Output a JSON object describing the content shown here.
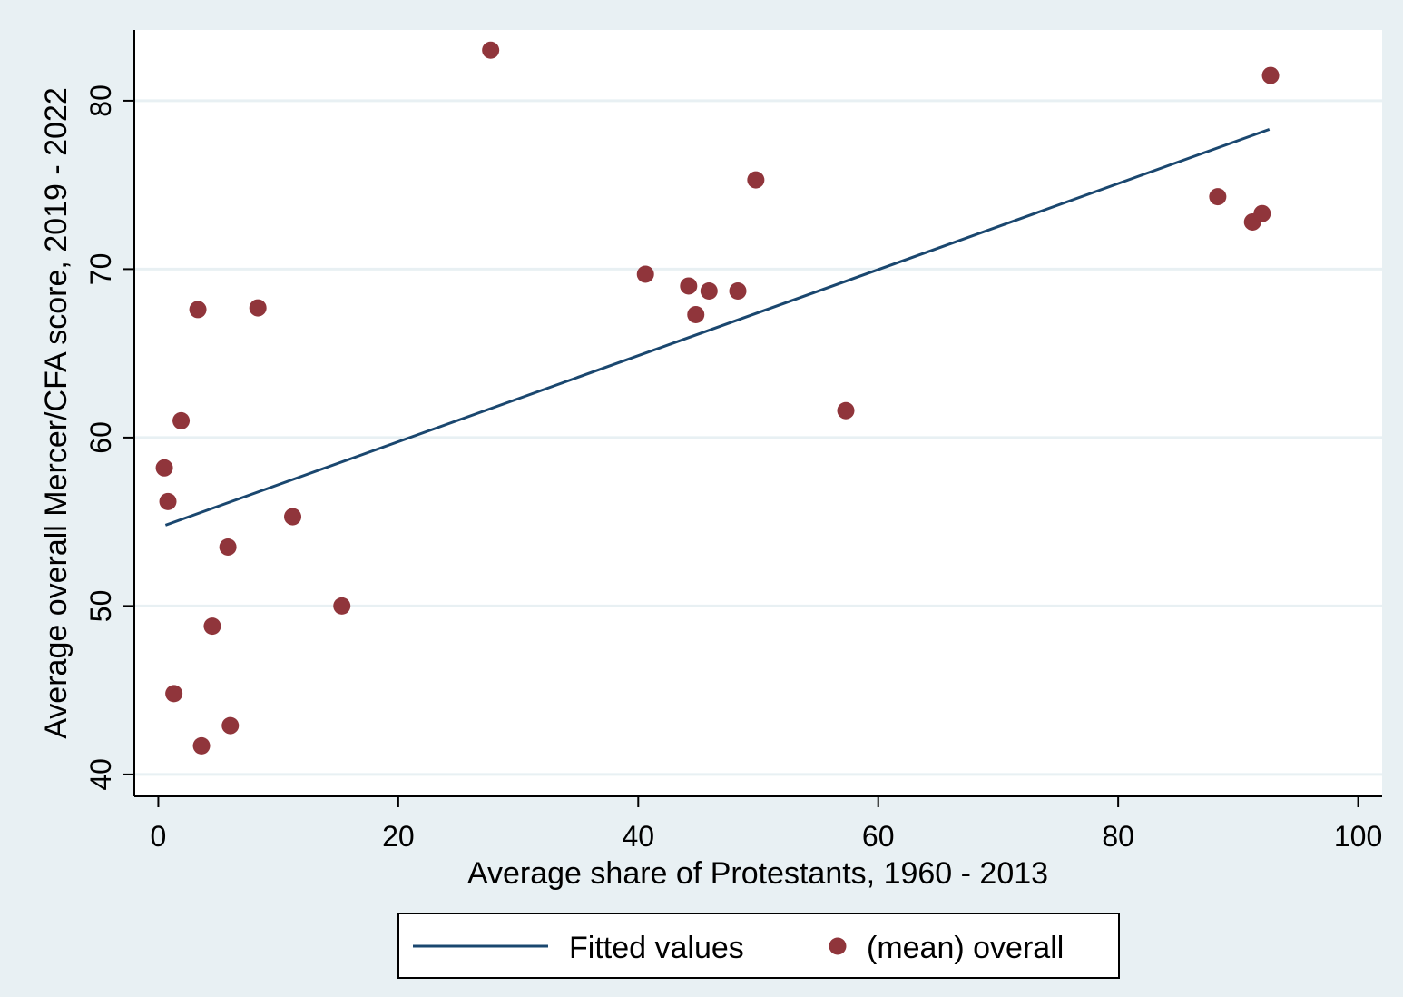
{
  "colors": {
    "background": "#e8f0f3",
    "plot_area": "#ffffff",
    "gridline": "#e8f0f3",
    "fit_line": "#1a476f",
    "points": "#90353b"
  },
  "chart_data": {
    "type": "scatter",
    "xlabel": "Average share of Protestants, 1960 - 2013",
    "ylabel": "Average overall Mercer/CFA score, 2019 - 2022",
    "xlim": [
      -2,
      102
    ],
    "ylim": [
      38.7,
      84.2
    ],
    "xticks": [
      0,
      20,
      40,
      60,
      80,
      100
    ],
    "yticks": [
      40,
      50,
      60,
      70,
      80
    ],
    "grid": true,
    "legend_position": "bottom",
    "legend": [
      {
        "label": "Fitted values",
        "kind": "line"
      },
      {
        "label": "(mean) overall",
        "kind": "marker"
      }
    ],
    "series": [
      {
        "name": "Fitted values",
        "type": "line",
        "points": [
          {
            "x": 0.6,
            "y": 54.8
          },
          {
            "x": 92.6,
            "y": 78.3
          }
        ]
      },
      {
        "name": "(mean) overall",
        "type": "scatter",
        "points": [
          {
            "x": 0.5,
            "y": 58.2
          },
          {
            "x": 0.8,
            "y": 56.2
          },
          {
            "x": 1.3,
            "y": 44.8
          },
          {
            "x": 1.9,
            "y": 61.0
          },
          {
            "x": 3.3,
            "y": 67.6
          },
          {
            "x": 3.6,
            "y": 41.7
          },
          {
            "x": 4.5,
            "y": 48.8
          },
          {
            "x": 5.8,
            "y": 53.5
          },
          {
            "x": 6.0,
            "y": 42.9
          },
          {
            "x": 8.3,
            "y": 67.7
          },
          {
            "x": 11.2,
            "y": 55.3
          },
          {
            "x": 15.3,
            "y": 50.0
          },
          {
            "x": 27.7,
            "y": 83.0
          },
          {
            "x": 40.6,
            "y": 69.7
          },
          {
            "x": 44.2,
            "y": 69.0
          },
          {
            "x": 44.8,
            "y": 67.3
          },
          {
            "x": 45.9,
            "y": 68.7
          },
          {
            "x": 48.3,
            "y": 68.7
          },
          {
            "x": 49.8,
            "y": 75.3
          },
          {
            "x": 57.3,
            "y": 61.6
          },
          {
            "x": 88.3,
            "y": 74.3
          },
          {
            "x": 91.2,
            "y": 72.8
          },
          {
            "x": 92.0,
            "y": 73.3
          },
          {
            "x": 92.7,
            "y": 81.5
          }
        ]
      }
    ]
  }
}
